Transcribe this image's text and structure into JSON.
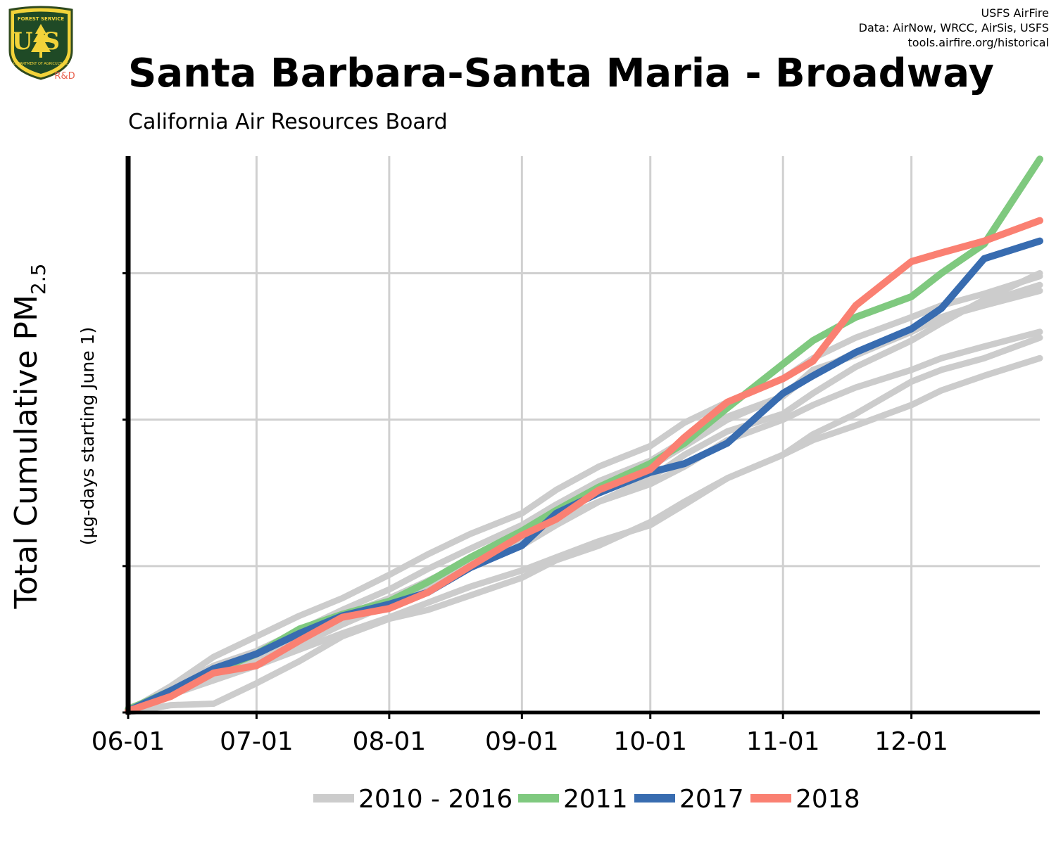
{
  "header": {
    "logo_text": {
      "top": "FOREST SERVICE",
      "letters": "US",
      "bottom": "DEPARTMENT OF AGRICULTURE",
      "tag": "R&D"
    },
    "credits": [
      "USFS AirFire",
      "Data: AirNow, WRCC, AirSis, USFS",
      "tools.airfire.org/historical"
    ],
    "title": "Santa Barbara-Santa Maria - Broadway",
    "subtitle": "California Air Resources Board"
  },
  "colors": {
    "history": "#cccccc",
    "2011": "#7fc97f",
    "2017": "#386cb0",
    "2018": "#fa8072",
    "grid": "#d0d0d0",
    "axis": "#000000"
  },
  "chart_data": {
    "type": "line",
    "title": "Santa Barbara-Santa Maria - Broadway",
    "subtitle": "California Air Resources Board",
    "xlabel": "",
    "ylabel": "Total Cumulative PM",
    "ylabel_subscript": "2.5",
    "ylabel_secondary": "(µg-days starting June 1)",
    "x_unit": "days since June 1",
    "x_ticks": [
      {
        "day": 0,
        "label": "06-01"
      },
      {
        "day": 30,
        "label": "07-01"
      },
      {
        "day": 61,
        "label": "08-01"
      },
      {
        "day": 92,
        "label": "09-01"
      },
      {
        "day": 122,
        "label": "10-01"
      },
      {
        "day": 153,
        "label": "11-01"
      },
      {
        "day": 183,
        "label": "12-01"
      }
    ],
    "xlim": [
      0,
      213
    ],
    "ylim": [
      0,
      1900
    ],
    "y_ticks": [
      0,
      500,
      1000,
      1500
    ],
    "y_tick_labels_shown": false,
    "grid": true,
    "legend_position": "bottom",
    "legend": [
      "2010 - 2016",
      "2011",
      "2017",
      "2018"
    ],
    "series": [
      {
        "name": "2010 - 2016",
        "group": "history",
        "x": [
          0,
          10,
          20,
          30,
          40,
          50,
          61,
          70,
          80,
          92,
          100,
          110,
          122,
          130,
          140,
          153,
          160,
          170,
          183,
          190,
          200,
          213
        ],
        "y": [
          15,
          65,
          120,
          175,
          250,
          330,
          390,
          450,
          520,
          595,
          655,
          720,
          780,
          840,
          930,
          1000,
          1050,
          1110,
          1170,
          1210,
          1250,
          1300
        ]
      },
      {
        "name": "",
        "group": "history",
        "x": [
          0,
          10,
          20,
          30,
          40,
          50,
          61,
          70,
          80,
          92,
          100,
          110,
          122,
          130,
          140,
          153,
          160,
          170,
          183,
          190,
          200,
          213
        ],
        "y": [
          10,
          60,
          110,
          160,
          215,
          270,
          325,
          375,
          430,
          485,
          530,
          585,
          640,
          710,
          800,
          880,
          930,
          980,
          1050,
          1100,
          1150,
          1210
        ]
      },
      {
        "name": "",
        "group": "history",
        "x": [
          0,
          10,
          20,
          30,
          40,
          50,
          61,
          70,
          80,
          92,
          100,
          110,
          122,
          130,
          140,
          153,
          160,
          170,
          183,
          190,
          200,
          213
        ],
        "y": [
          0,
          25,
          30,
          100,
          175,
          260,
          320,
          350,
          400,
          460,
          520,
          570,
          650,
          720,
          800,
          880,
          950,
          1020,
          1130,
          1170,
          1210,
          1280
        ]
      },
      {
        "name": "",
        "group": "history",
        "x": [
          0,
          10,
          20,
          30,
          40,
          50,
          61,
          70,
          80,
          92,
          100,
          110,
          122,
          130,
          140,
          153,
          160,
          170,
          183,
          190,
          200,
          213
        ],
        "y": [
          8,
          80,
          160,
          210,
          280,
          350,
          420,
          490,
          560,
          640,
          710,
          790,
          860,
          930,
          1010,
          1080,
          1160,
          1230,
          1310,
          1350,
          1400,
          1460
        ]
      },
      {
        "name": "",
        "group": "history",
        "x": [
          0,
          10,
          20,
          30,
          40,
          50,
          61,
          70,
          80,
          92,
          100,
          110,
          122,
          130,
          140,
          153,
          160,
          170,
          183,
          190,
          200,
          213
        ],
        "y": [
          5,
          90,
          190,
          260,
          330,
          390,
          470,
          540,
          610,
          680,
          760,
          840,
          910,
          990,
          1060,
          1140,
          1210,
          1280,
          1350,
          1390,
          1430,
          1490
        ]
      },
      {
        "name": "",
        "group": "history",
        "x": [
          0,
          10,
          20,
          30,
          40,
          50,
          61,
          70,
          80,
          92,
          100,
          110,
          122,
          130,
          140,
          153,
          160,
          170,
          183,
          190,
          200,
          213
        ],
        "y": [
          10,
          70,
          150,
          190,
          240,
          310,
          370,
          430,
          500,
          570,
          640,
          720,
          800,
          880,
          960,
          1020,
          1090,
          1180,
          1270,
          1330,
          1410,
          1500
        ]
      },
      {
        "name": "",
        "group": "history",
        "x": [
          0,
          10,
          20,
          30,
          40,
          50,
          61,
          70,
          80,
          92,
          100,
          110,
          122,
          130,
          140,
          153,
          160,
          170,
          183,
          190,
          200,
          213
        ],
        "y": [
          12,
          75,
          130,
          190,
          230,
          300,
          370,
          440,
          520,
          600,
          680,
          760,
          840,
          910,
          1000,
          1080,
          1170,
          1220,
          1300,
          1350,
          1390,
          1440
        ]
      },
      {
        "name": "2011",
        "group": "2011",
        "x": [
          0,
          10,
          20,
          30,
          40,
          50,
          61,
          70,
          80,
          92,
          100,
          110,
          122,
          130,
          140,
          153,
          160,
          170,
          183,
          190,
          200,
          213
        ],
        "y": [
          10,
          75,
          140,
          200,
          285,
          335,
          380,
          445,
          530,
          620,
          690,
          770,
          850,
          920,
          1040,
          1190,
          1270,
          1350,
          1420,
          1500,
          1600,
          1890
        ]
      },
      {
        "name": "2017",
        "group": "2017",
        "x": [
          0,
          10,
          20,
          30,
          40,
          50,
          61,
          70,
          80,
          92,
          100,
          110,
          122,
          130,
          140,
          153,
          160,
          170,
          183,
          190,
          200,
          213
        ],
        "y": [
          5,
          75,
          150,
          200,
          270,
          330,
          370,
          410,
          495,
          570,
          680,
          750,
          820,
          850,
          920,
          1090,
          1150,
          1230,
          1310,
          1380,
          1550,
          1610
        ]
      },
      {
        "name": "2018",
        "group": "2018",
        "x": [
          0,
          10,
          20,
          30,
          40,
          50,
          61,
          70,
          80,
          92,
          100,
          110,
          122,
          130,
          140,
          153,
          160,
          170,
          183,
          190,
          200,
          213
        ],
        "y": [
          5,
          55,
          135,
          160,
          245,
          325,
          355,
          410,
          500,
          605,
          660,
          760,
          830,
          940,
          1060,
          1140,
          1200,
          1390,
          1540,
          1570,
          1610,
          1680
        ]
      }
    ]
  }
}
